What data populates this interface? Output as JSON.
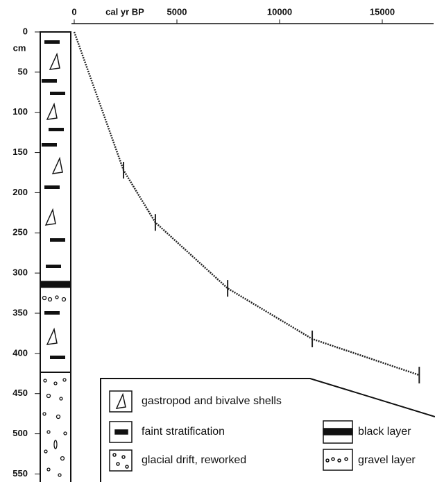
{
  "chart_data": {
    "type": "line",
    "x_label": "cal yr BP",
    "y_unit": "cm",
    "x": [
      0,
      2400,
      3950,
      7470,
      11590,
      16800
    ],
    "series": [
      {
        "values": [
          0,
          172,
          237,
          319,
          382,
          427
        ],
        "color": "#222"
      }
    ],
    "xlim": [
      0,
      17500
    ],
    "xticks": [
      0,
      5000,
      10000,
      15000
    ],
    "ylim": [
      0,
      560
    ],
    "yticks": [
      0,
      50,
      100,
      150,
      200,
      250,
      300,
      350,
      400,
      450,
      500,
      550
    ],
    "y_inverted": true,
    "x_axis_position": "top"
  },
  "legend": {
    "items": [
      "gastropod and bivalve shells",
      "faint stratification",
      "glacial drift, reworked",
      "black layer",
      "gravel layer"
    ]
  }
}
